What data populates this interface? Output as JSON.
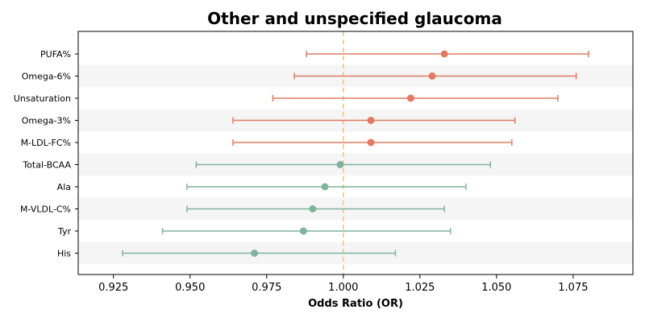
{
  "chart_data": {
    "type": "forest",
    "title": "Other and unspecified glaucoma",
    "xlabel": "Odds Ratio (OR)",
    "xlim": [
      0.9135,
      1.0945
    ],
    "xticks": [
      0.925,
      0.95,
      0.975,
      1.0,
      1.025,
      1.05,
      1.075
    ],
    "xtick_labels": [
      "0.925",
      "0.950",
      "0.975",
      "1.000",
      "1.025",
      "1.050",
      "1.075"
    ],
    "reference_line": 1.0,
    "reference_color": "#f5c57a",
    "stripe_color": "#f5f5f5",
    "colors": {
      "positive": "#e07b62",
      "negative": "#7fb49a"
    },
    "grid": false,
    "rows": [
      {
        "label": "PUFA%",
        "or": 1.033,
        "lower": 0.988,
        "upper": 1.08,
        "group": "positive"
      },
      {
        "label": "Omega-6%",
        "or": 1.029,
        "lower": 0.984,
        "upper": 1.076,
        "group": "positive"
      },
      {
        "label": "Unsaturation",
        "or": 1.022,
        "lower": 0.977,
        "upper": 1.07,
        "group": "positive"
      },
      {
        "label": "Omega-3%",
        "or": 1.009,
        "lower": 0.964,
        "upper": 1.056,
        "group": "positive"
      },
      {
        "label": "M-LDL-FC%",
        "or": 1.009,
        "lower": 0.964,
        "upper": 1.055,
        "group": "positive"
      },
      {
        "label": "Total-BCAA",
        "or": 0.999,
        "lower": 0.952,
        "upper": 1.048,
        "group": "negative"
      },
      {
        "label": "Ala",
        "or": 0.994,
        "lower": 0.949,
        "upper": 1.04,
        "group": "negative"
      },
      {
        "label": "M-VLDL-C%",
        "or": 0.99,
        "lower": 0.949,
        "upper": 1.033,
        "group": "negative"
      },
      {
        "label": "Tyr",
        "or": 0.987,
        "lower": 0.941,
        "upper": 1.035,
        "group": "negative"
      },
      {
        "label": "His",
        "or": 0.971,
        "lower": 0.928,
        "upper": 1.017,
        "group": "negative"
      }
    ]
  }
}
